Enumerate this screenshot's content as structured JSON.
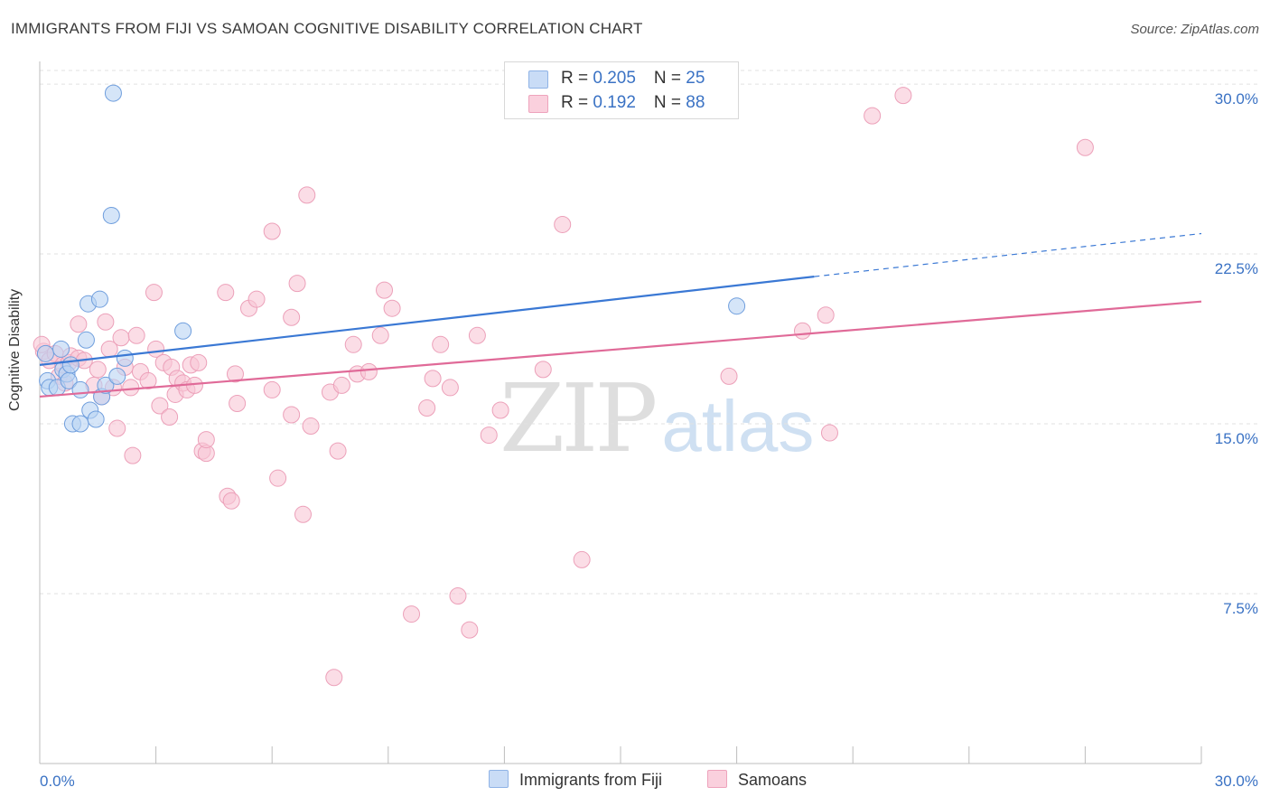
{
  "title": "IMMIGRANTS FROM FIJI VS SAMOAN COGNITIVE DISABILITY CORRELATION CHART",
  "source": "Source: ZipAtlas.com",
  "watermark": {
    "zip": "ZIP",
    "atlas": "atlas"
  },
  "legend": {
    "rows": [
      {
        "r_label": "R = ",
        "r_value": "0.205",
        "n_label": "N = ",
        "n_value": "25",
        "color": "#a9c8f0"
      },
      {
        "r_label": "R = ",
        "r_value": " 0.192",
        "n_label": "N = ",
        "n_value": "88",
        "color": "#f6b9cc"
      }
    ]
  },
  "chart_data": {
    "type": "scatter",
    "title": "IMMIGRANTS FROM FIJI VS SAMOAN COGNITIVE DISABILITY CORRELATION CHART",
    "xlabel": "",
    "ylabel": "Cognitive Disability",
    "xlim": [
      0,
      30
    ],
    "ylim": [
      0,
      31
    ],
    "x_tick_labels": [
      "0.0%",
      "30.0%"
    ],
    "y_ticks": [
      7.5,
      15.0,
      22.5,
      30.0
    ],
    "y_tick_labels": [
      "7.5%",
      "15.0%",
      "22.5%",
      "30.0%"
    ],
    "grid": "horizontal dashed",
    "legend_placement": "top-center",
    "colors": {
      "fiji": "#3a78d4",
      "samoans": "#e06a98",
      "tick_label": "#3a72c4"
    },
    "series": [
      {
        "name": "Immigrants from Fiji",
        "marker_color": "#a9c8f0",
        "line_color": "#3a78d4",
        "trend": {
          "x": [
            0,
            20
          ],
          "y": [
            17.6,
            21.5
          ]
        },
        "trend_extension": {
          "x": [
            20,
            30
          ],
          "y": [
            21.5,
            23.4
          ]
        },
        "points": [
          [
            0.15,
            18.1
          ],
          [
            0.2,
            16.9
          ],
          [
            0.25,
            16.6
          ],
          [
            0.45,
            16.6
          ],
          [
            0.55,
            18.3
          ],
          [
            0.6,
            17.4
          ],
          [
            0.7,
            17.2
          ],
          [
            0.75,
            16.9
          ],
          [
            0.8,
            17.6
          ],
          [
            0.85,
            15.0
          ],
          [
            1.05,
            15.0
          ],
          [
            1.05,
            16.5
          ],
          [
            1.2,
            18.7
          ],
          [
            1.25,
            20.3
          ],
          [
            1.3,
            15.6
          ],
          [
            1.45,
            15.2
          ],
          [
            1.55,
            20.5
          ],
          [
            1.6,
            16.2
          ],
          [
            1.7,
            16.7
          ],
          [
            1.9,
            29.6
          ],
          [
            1.85,
            24.2
          ],
          [
            2.0,
            17.1
          ],
          [
            2.2,
            17.9
          ],
          [
            3.7,
            19.1
          ],
          [
            18.0,
            20.2
          ]
        ]
      },
      {
        "name": "Samoans",
        "marker_color": "#f6b9cc",
        "line_color": "#e06a98",
        "trend": {
          "x": [
            0,
            30
          ],
          "y": [
            16.2,
            20.4
          ]
        },
        "points": [
          [
            0.1,
            18.2
          ],
          [
            0.25,
            17.8
          ],
          [
            0.4,
            18.1
          ],
          [
            0.5,
            17.1
          ],
          [
            0.6,
            17.6
          ],
          [
            0.65,
            16.8
          ],
          [
            0.75,
            17.7
          ],
          [
            0.8,
            18.0
          ],
          [
            1.0,
            17.9
          ],
          [
            1.0,
            19.4
          ],
          [
            1.15,
            17.8
          ],
          [
            1.4,
            16.7
          ],
          [
            1.5,
            17.4
          ],
          [
            1.6,
            16.2
          ],
          [
            1.7,
            19.5
          ],
          [
            1.8,
            18.3
          ],
          [
            1.9,
            16.6
          ],
          [
            2.0,
            14.8
          ],
          [
            2.1,
            18.8
          ],
          [
            2.2,
            17.5
          ],
          [
            2.35,
            16.6
          ],
          [
            2.4,
            13.6
          ],
          [
            2.5,
            18.9
          ],
          [
            2.6,
            17.3
          ],
          [
            2.8,
            16.9
          ],
          [
            2.95,
            20.8
          ],
          [
            3.0,
            18.3
          ],
          [
            3.1,
            15.8
          ],
          [
            3.2,
            17.7
          ],
          [
            3.35,
            15.3
          ],
          [
            3.4,
            17.5
          ],
          [
            3.5,
            16.3
          ],
          [
            3.55,
            17.0
          ],
          [
            3.7,
            16.8
          ],
          [
            3.8,
            16.5
          ],
          [
            3.9,
            17.6
          ],
          [
            4.0,
            16.7
          ],
          [
            4.1,
            17.7
          ],
          [
            4.2,
            13.8
          ],
          [
            4.3,
            13.7
          ],
          [
            4.3,
            14.3
          ],
          [
            4.8,
            20.8
          ],
          [
            4.85,
            11.8
          ],
          [
            4.95,
            11.6
          ],
          [
            5.05,
            17.2
          ],
          [
            5.1,
            15.9
          ],
          [
            5.4,
            20.1
          ],
          [
            5.6,
            20.5
          ],
          [
            6.0,
            16.5
          ],
          [
            6.0,
            23.5
          ],
          [
            6.15,
            12.6
          ],
          [
            6.5,
            15.4
          ],
          [
            6.5,
            19.7
          ],
          [
            6.65,
            21.2
          ],
          [
            6.8,
            11.0
          ],
          [
            6.9,
            25.1
          ],
          [
            7.0,
            14.9
          ],
          [
            7.5,
            16.4
          ],
          [
            7.6,
            3.8
          ],
          [
            7.7,
            13.8
          ],
          [
            7.8,
            16.7
          ],
          [
            8.1,
            18.5
          ],
          [
            8.2,
            17.2
          ],
          [
            8.5,
            17.3
          ],
          [
            8.8,
            18.9
          ],
          [
            8.9,
            20.9
          ],
          [
            9.1,
            20.1
          ],
          [
            9.6,
            6.6
          ],
          [
            10.0,
            15.7
          ],
          [
            10.15,
            17.0
          ],
          [
            10.35,
            18.5
          ],
          [
            10.6,
            16.6
          ],
          [
            10.8,
            7.4
          ],
          [
            11.1,
            5.9
          ],
          [
            11.3,
            18.9
          ],
          [
            11.6,
            14.5
          ],
          [
            11.9,
            15.6
          ],
          [
            13.0,
            17.4
          ],
          [
            13.5,
            23.8
          ],
          [
            14.0,
            9.0
          ],
          [
            17.8,
            17.1
          ],
          [
            19.7,
            19.1
          ],
          [
            20.3,
            19.8
          ],
          [
            20.4,
            14.6
          ],
          [
            21.5,
            28.6
          ],
          [
            22.3,
            29.5
          ],
          [
            27.0,
            27.2
          ],
          [
            0.05,
            18.5
          ]
        ]
      }
    ]
  }
}
